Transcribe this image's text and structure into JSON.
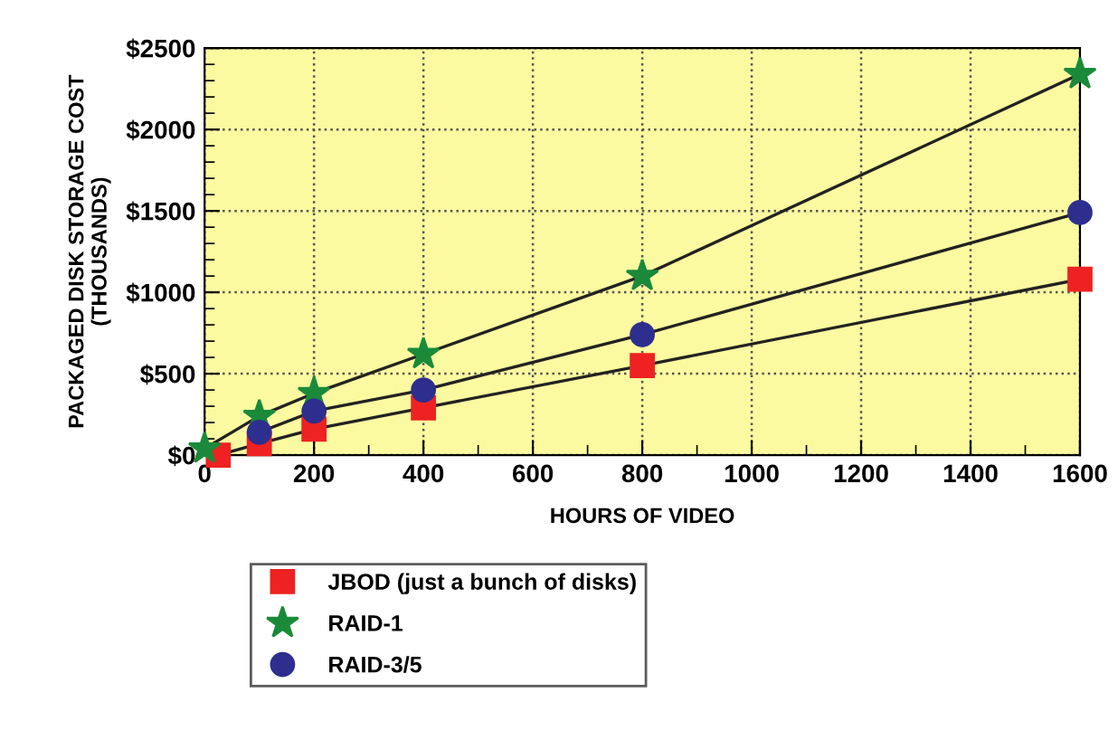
{
  "chart_data": {
    "type": "line",
    "xlabel": "HOURS OF VIDEO",
    "ylabel": "PACKAGED DISK STORAGE COST\n(THOUSANDS)",
    "xlim": [
      0,
      1600
    ],
    "xticks": [
      0,
      200,
      400,
      600,
      800,
      1000,
      1200,
      1400,
      1600
    ],
    "ylim": [
      0,
      2500
    ],
    "yticks": [
      {
        "value": 0,
        "label": "$0"
      },
      {
        "value": 500,
        "label": "$500"
      },
      {
        "value": 1000,
        "label": "$1000"
      },
      {
        "value": 1500,
        "label": "$1500"
      },
      {
        "value": 2000,
        "label": "$2000"
      },
      {
        "value": 2500,
        "label": "$2500"
      }
    ],
    "grid": true,
    "legend": "bottom",
    "line_style": "solid",
    "series": [
      {
        "name": "JBOD (just a bunch of disks)",
        "color": "#ee2222",
        "marker": "square",
        "x": [
          25,
          100,
          200,
          400,
          800,
          1600
        ],
        "values": [
          0,
          70,
          160,
          290,
          550,
          1080
        ]
      },
      {
        "name": "RAID-1",
        "color": "#1a8a3a",
        "marker": "star",
        "x": [
          0,
          100,
          200,
          400,
          800,
          1600
        ],
        "values": [
          40,
          240,
          380,
          620,
          1100,
          2340
        ]
      },
      {
        "name": "RAID-3/5",
        "color": "#2e2e8e",
        "marker": "circle",
        "x": [
          100,
          200,
          400,
          800,
          1600
        ],
        "values": [
          140,
          270,
          400,
          740,
          1490
        ]
      }
    ]
  }
}
